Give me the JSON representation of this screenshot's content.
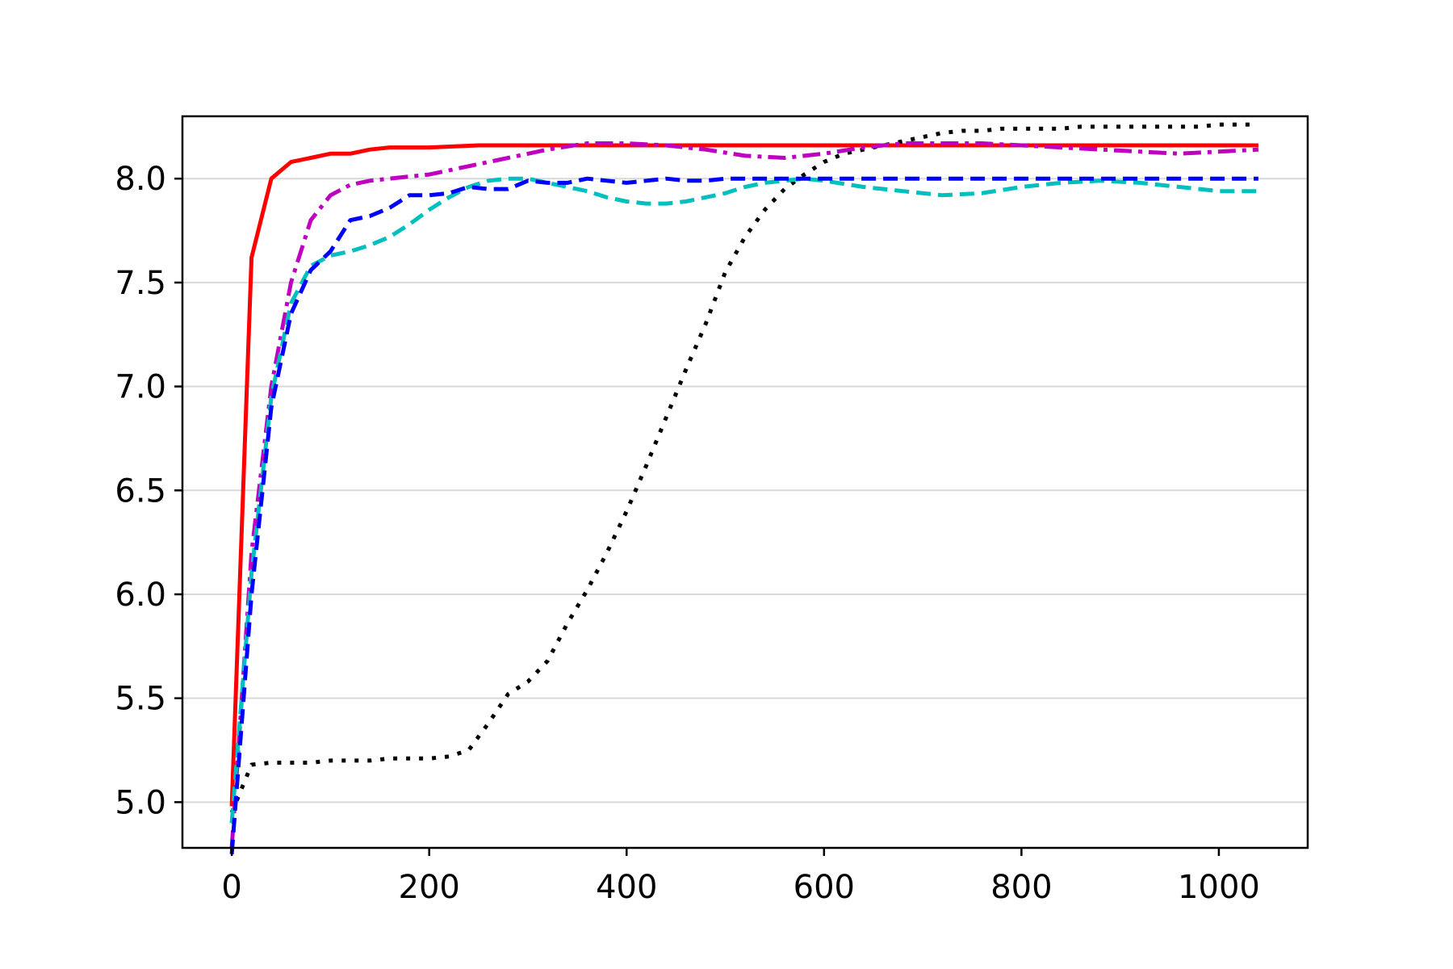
{
  "chart_data": {
    "type": "line",
    "title": "",
    "xlabel": "",
    "ylabel": "",
    "xlim": [
      -50,
      1090
    ],
    "ylim": [
      4.78,
      8.3
    ],
    "xticks": [
      0,
      200,
      400,
      600,
      800,
      1000
    ],
    "xtick_labels": [
      "0",
      "200",
      "400",
      "600",
      "800",
      "1000"
    ],
    "yticks": [
      5.0,
      5.5,
      6.0,
      6.5,
      7.0,
      7.5,
      8.0
    ],
    "ytick_labels": [
      "5.0",
      "5.5",
      "6.0",
      "6.5",
      "7.0",
      "7.5",
      "8.0"
    ],
    "grid": "horizontal",
    "legend": "none",
    "series": [
      {
        "color": "#000000",
        "style": "dotted",
        "x": [
          0,
          20,
          40,
          60,
          80,
          100,
          120,
          140,
          160,
          180,
          200,
          220,
          240,
          260,
          280,
          300,
          320,
          340,
          360,
          380,
          400,
          420,
          440,
          460,
          480,
          500,
          520,
          540,
          560,
          580,
          600,
          620,
          640,
          660,
          680,
          700,
          720,
          740,
          760,
          780,
          800,
          820,
          840,
          860,
          880,
          900,
          920,
          940,
          960,
          980,
          1000,
          1020,
          1040
        ],
        "values": [
          4.95,
          5.18,
          5.19,
          5.19,
          5.19,
          5.2,
          5.2,
          5.2,
          5.21,
          5.21,
          5.21,
          5.22,
          5.25,
          5.38,
          5.52,
          5.58,
          5.68,
          5.86,
          6.02,
          6.2,
          6.4,
          6.62,
          6.85,
          7.08,
          7.3,
          7.55,
          7.72,
          7.85,
          7.95,
          8.02,
          8.08,
          8.12,
          8.14,
          8.16,
          8.18,
          8.2,
          8.22,
          8.23,
          8.23,
          8.24,
          8.24,
          8.24,
          8.24,
          8.25,
          8.25,
          8.25,
          8.25,
          8.25,
          8.25,
          8.25,
          8.26,
          8.26,
          8.26
        ]
      },
      {
        "color": "#ff0000",
        "style": "solid",
        "x": [
          0,
          20,
          40,
          60,
          80,
          100,
          120,
          140,
          160,
          180,
          200,
          250,
          300,
          350,
          400,
          450,
          500,
          550,
          600,
          650,
          700,
          750,
          800,
          850,
          900,
          950,
          1000,
          1040
        ],
        "values": [
          4.98,
          7.62,
          8.0,
          8.08,
          8.1,
          8.12,
          8.12,
          8.14,
          8.15,
          8.15,
          8.15,
          8.16,
          8.16,
          8.16,
          8.16,
          8.16,
          8.16,
          8.16,
          8.16,
          8.16,
          8.16,
          8.16,
          8.16,
          8.16,
          8.16,
          8.16,
          8.16,
          8.16
        ]
      },
      {
        "color": "#c000c0",
        "style": "dash-dot",
        "x": [
          0,
          20,
          40,
          60,
          80,
          100,
          120,
          140,
          160,
          180,
          200,
          240,
          280,
          320,
          360,
          400,
          440,
          480,
          520,
          560,
          600,
          640,
          680,
          720,
          760,
          800,
          840,
          880,
          920,
          960,
          1000,
          1040
        ],
        "values": [
          4.78,
          6.2,
          7.0,
          7.5,
          7.8,
          7.92,
          7.97,
          7.99,
          8.0,
          8.01,
          8.02,
          8.06,
          8.1,
          8.14,
          8.17,
          8.17,
          8.16,
          8.14,
          8.11,
          8.1,
          8.12,
          8.15,
          8.17,
          8.17,
          8.17,
          8.16,
          8.15,
          8.14,
          8.13,
          8.12,
          8.13,
          8.14
        ]
      },
      {
        "color": "#00bfbf",
        "style": "dashed",
        "x": [
          0,
          20,
          40,
          60,
          80,
          100,
          120,
          140,
          160,
          180,
          200,
          220,
          240,
          260,
          280,
          300,
          320,
          340,
          360,
          380,
          400,
          420,
          440,
          460,
          480,
          500,
          520,
          540,
          560,
          580,
          600,
          640,
          680,
          720,
          760,
          800,
          840,
          880,
          920,
          960,
          1000,
          1040
        ],
        "values": [
          4.9,
          6.1,
          6.95,
          7.4,
          7.58,
          7.63,
          7.65,
          7.68,
          7.72,
          7.78,
          7.85,
          7.91,
          7.96,
          7.99,
          8.0,
          8.0,
          7.98,
          7.96,
          7.94,
          7.91,
          7.89,
          7.88,
          7.88,
          7.89,
          7.91,
          7.93,
          7.96,
          7.98,
          7.99,
          8.0,
          7.99,
          7.96,
          7.94,
          7.92,
          7.93,
          7.96,
          7.98,
          7.99,
          7.98,
          7.96,
          7.94,
          7.94
        ]
      },
      {
        "color": "#0000ff",
        "style": "dashed",
        "x": [
          0,
          20,
          40,
          60,
          80,
          100,
          120,
          140,
          160,
          180,
          200,
          220,
          240,
          260,
          280,
          300,
          320,
          340,
          360,
          380,
          400,
          420,
          440,
          460,
          480,
          500,
          520,
          540,
          560,
          580,
          600,
          640,
          680,
          720,
          760,
          800,
          840,
          880,
          920,
          960,
          1000,
          1040
        ],
        "values": [
          4.75,
          6.0,
          6.9,
          7.35,
          7.56,
          7.65,
          7.8,
          7.82,
          7.86,
          7.92,
          7.92,
          7.93,
          7.96,
          7.95,
          7.95,
          7.99,
          7.98,
          7.98,
          8.0,
          7.99,
          7.98,
          7.99,
          8.0,
          7.99,
          7.99,
          8.0,
          8.0,
          8.0,
          8.0,
          8.0,
          8.0,
          8.0,
          8.0,
          8.0,
          8.0,
          8.0,
          8.0,
          8.0,
          8.0,
          8.0,
          8.0,
          8.0
        ]
      }
    ]
  }
}
